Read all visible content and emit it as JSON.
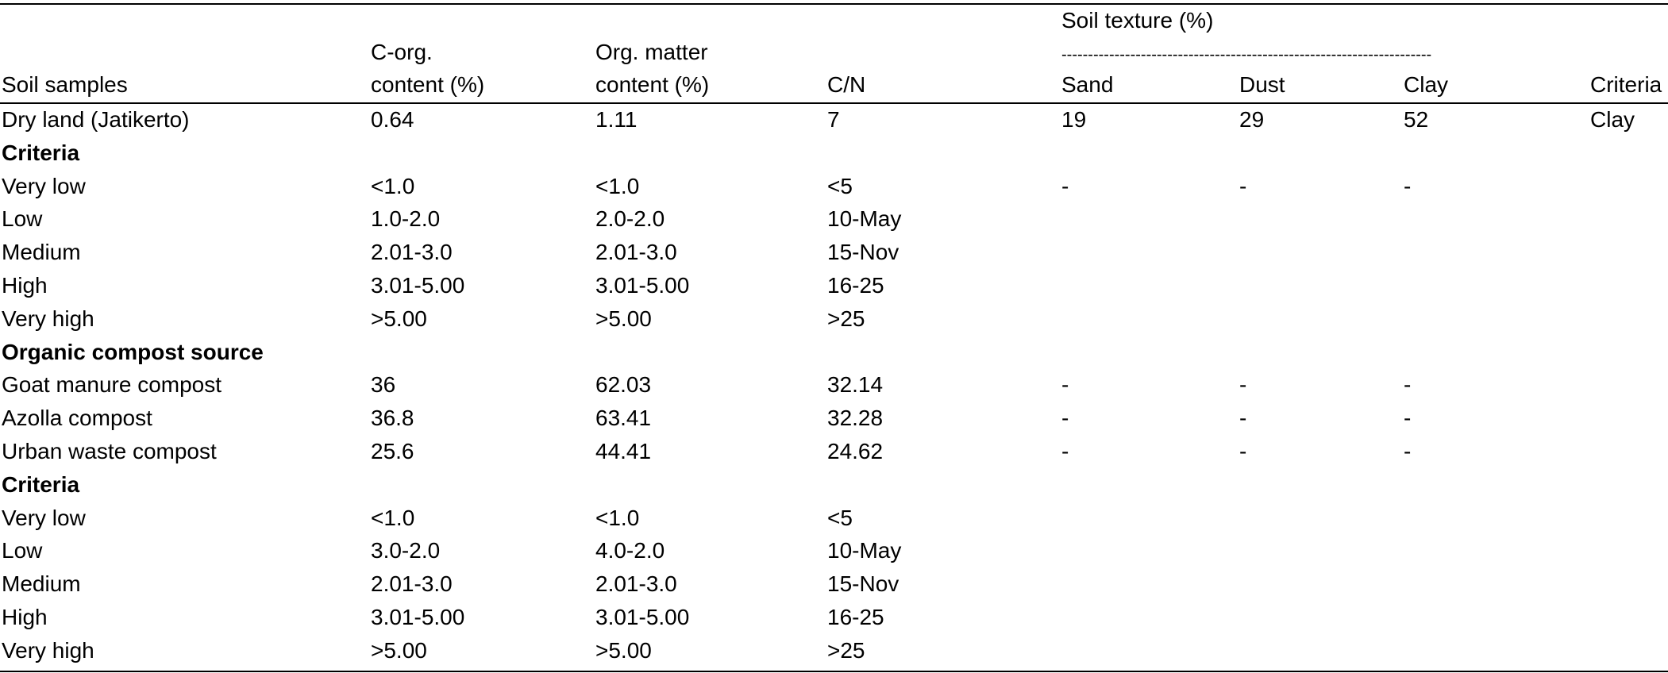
{
  "header": {
    "soil_samples": "Soil samples",
    "c_org_line1": "C-org.",
    "c_org_line2": "content (%)",
    "org_matter_line1": "Org. matter",
    "org_matter_line2": "content (%)",
    "cn": "C/N",
    "soil_texture": "Soil texture (%)",
    "soil_texture_rule": "----------------------------------------------------------------------",
    "sand": "Sand",
    "dust": "Dust",
    "clay": "Clay",
    "criteria": "Criteria"
  },
  "rows": [
    {
      "kind": "data",
      "cells": [
        "Dry land (Jatikerto)",
        "0.64",
        "1.11",
        "7",
        "19",
        "29",
        "52",
        "Clay"
      ]
    },
    {
      "kind": "section",
      "label": "Criteria"
    },
    {
      "kind": "data",
      "cells": [
        "Very low",
        "<1.0",
        "<1.0",
        "<5",
        "-",
        "-",
        "-",
        ""
      ]
    },
    {
      "kind": "data",
      "cells": [
        "Low",
        "1.0-2.0",
        "2.0-2.0",
        "10-May",
        "",
        "",
        "",
        ""
      ]
    },
    {
      "kind": "data",
      "cells": [
        "Medium",
        "2.01-3.0",
        "2.01-3.0",
        "15-Nov",
        "",
        "",
        "",
        ""
      ]
    },
    {
      "kind": "data",
      "cells": [
        "High",
        "3.01-5.00",
        "3.01-5.00",
        "16-25",
        "",
        "",
        "",
        ""
      ]
    },
    {
      "kind": "data",
      "cells": [
        "Very high",
        ">5.00",
        ">5.00",
        ">25",
        "",
        "",
        "",
        ""
      ]
    },
    {
      "kind": "section",
      "label": "Organic compost source"
    },
    {
      "kind": "data",
      "cells": [
        "Goat manure compost",
        "36",
        "62.03",
        "32.14",
        "-",
        "-",
        "-",
        ""
      ]
    },
    {
      "kind": "data",
      "cells": [
        "Azolla compost",
        "36.8",
        "63.41",
        "32.28",
        "-",
        "-",
        "-",
        ""
      ]
    },
    {
      "kind": "data",
      "cells": [
        "Urban waste compost",
        "25.6",
        "44.41",
        "24.62",
        "-",
        "-",
        "-",
        ""
      ]
    },
    {
      "kind": "section",
      "label": "Criteria"
    },
    {
      "kind": "data",
      "cells": [
        "Very low",
        "<1.0",
        "<1.0",
        "<5",
        "",
        "",
        "",
        ""
      ]
    },
    {
      "kind": "data",
      "cells": [
        "Low",
        "3.0-2.0",
        "4.0-2.0",
        "10-May",
        "",
        "",
        "",
        ""
      ]
    },
    {
      "kind": "data",
      "cells": [
        "Medium",
        "2.01-3.0",
        "2.01-3.0",
        "15-Nov",
        "",
        "",
        "",
        ""
      ]
    },
    {
      "kind": "data",
      "cells": [
        "High",
        "3.01-5.00",
        "3.01-5.00",
        "16-25",
        "",
        "",
        "",
        ""
      ]
    },
    {
      "kind": "data",
      "cells": [
        "Very high",
        ">5.00",
        ">5.00",
        ">25",
        "",
        "",
        "",
        ""
      ]
    }
  ]
}
